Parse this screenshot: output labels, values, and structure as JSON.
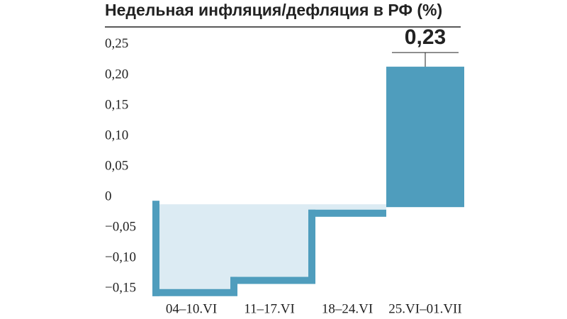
{
  "chart_data": {
    "type": "bar",
    "title": "Недельная инфляция/дефляция в РФ (%)",
    "categories": [
      "04–10.VI",
      "11–17.VI",
      "18–24.VI",
      "25.VI–01.VII"
    ],
    "values": [
      -0.14,
      -0.12,
      -0.01,
      0.23
    ],
    "value_labels": [
      null,
      null,
      null,
      "0,23"
    ],
    "color": "#4f9dbd",
    "ylim": [
      -0.16,
      0.28
    ],
    "yticks": [
      {
        "value": 0.25,
        "label": "0,25"
      },
      {
        "value": 0.2,
        "label": "0,20"
      },
      {
        "value": 0.15,
        "label": "0,15"
      },
      {
        "value": 0.1,
        "label": "0,10"
      },
      {
        "value": 0.05,
        "label": "0,05"
      },
      0,
      {
        "value": -0.05,
        "label": "−0,05"
      },
      {
        "value": -0.1,
        "label": "−0,10"
      },
      {
        "value": -0.15,
        "label": "−0,15"
      }
    ],
    "grid": false
  }
}
